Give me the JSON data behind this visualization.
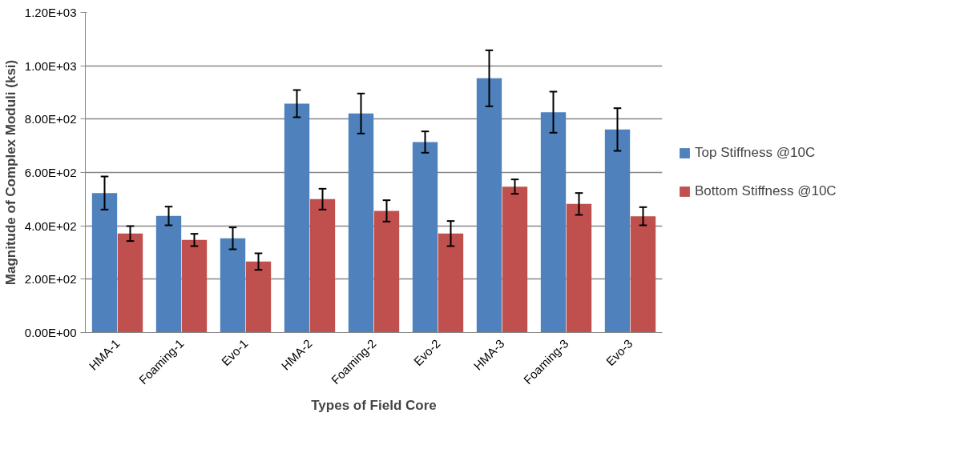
{
  "chart_data": {
    "type": "bar",
    "xlabel": "Types of Field Core",
    "ylabel": "Magnitude of Complex Moduli (ksi)",
    "categories": [
      "HMA-1",
      "Foaming-1",
      "Evo-1",
      "HMA-2",
      "Foaming-2",
      "Evo-2",
      "HMA-3",
      "Foaming-3",
      "Evo-3"
    ],
    "series": [
      {
        "name": "Top Stiffness @10C",
        "color": "#4f81bd",
        "values": [
          523,
          437,
          353,
          858,
          821,
          714,
          953,
          826,
          761
        ],
        "errors": [
          62,
          35,
          41,
          51,
          75,
          40,
          105,
          77,
          80
        ]
      },
      {
        "name": "Bottom Stiffness @10C",
        "color": "#c0504d",
        "values": [
          371,
          347,
          266,
          500,
          456,
          371,
          547,
          482,
          436
        ],
        "errors": [
          28,
          23,
          31,
          39,
          40,
          47,
          27,
          41,
          34
        ]
      }
    ],
    "ylim": [
      0,
      1200
    ],
    "yticks": [
      {
        "value": 0,
        "label": "0.00E+00"
      },
      {
        "value": 200,
        "label": "2.00E+02"
      },
      {
        "value": 400,
        "label": "4.00E+02"
      },
      {
        "value": 600,
        "label": "6.00E+02"
      },
      {
        "value": 800,
        "label": "8.00E+02"
      },
      {
        "value": 1000,
        "label": "1.00E+03"
      },
      {
        "value": 1200,
        "label": "1.20E+03"
      }
    ],
    "grid": "y",
    "legend": "right"
  }
}
